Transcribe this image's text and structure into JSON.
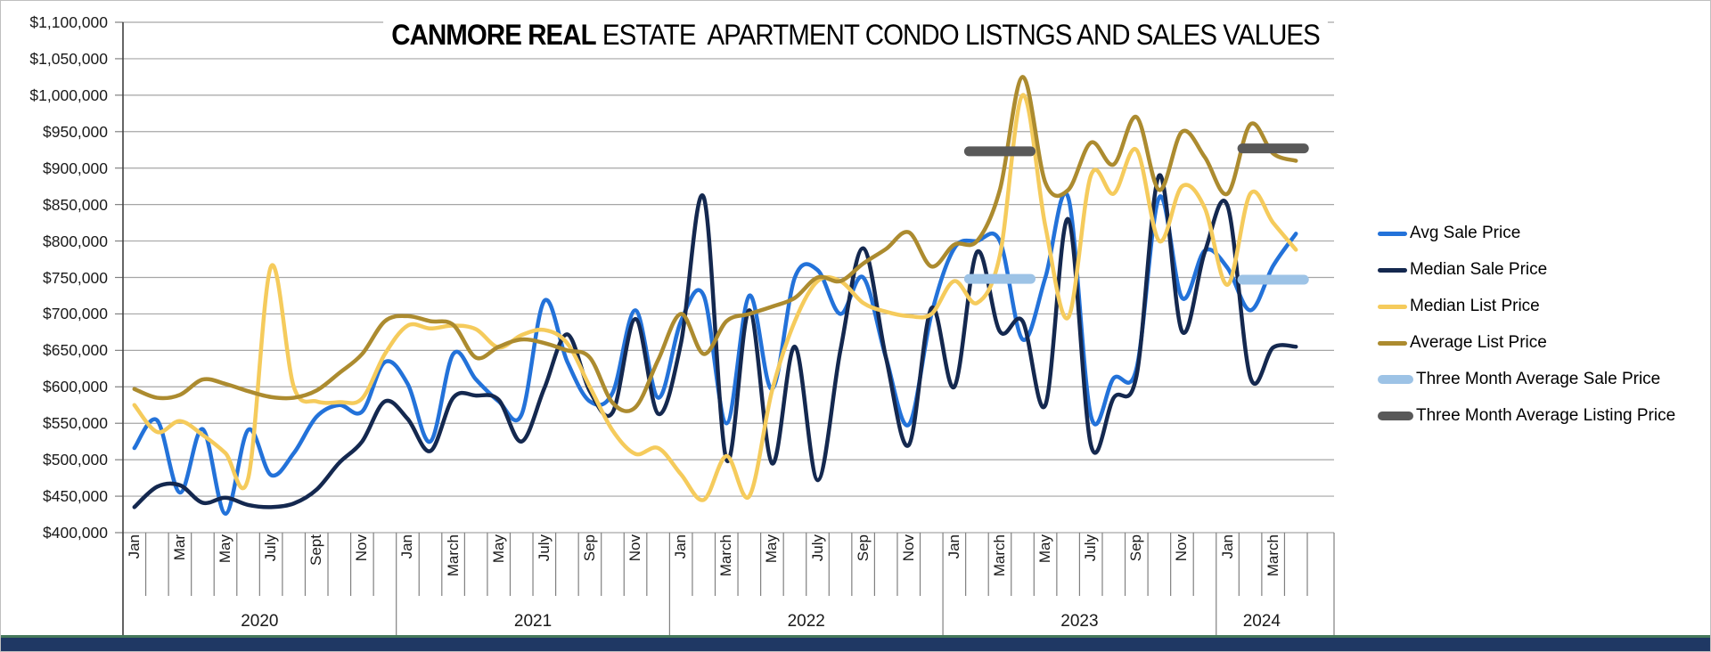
{
  "title": {
    "bold": "CANMORE REAL",
    "rest": " ESTATE  APARTMENT CONDO LISTNGS AND SALES VALUES"
  },
  "colors": {
    "avg_sale": "#2372d9",
    "median_sale": "#14284f",
    "median_list": "#f5cb5c",
    "avg_list": "#ac8b2f",
    "three_month_sale": "#9dc3e6",
    "three_month_listing": "#595959",
    "gridline": "#a6a6a6",
    "axis": "#404040",
    "tick": "#808080",
    "bottom_strip": "#1f3864",
    "bottom_strip_edge": "#46795b"
  },
  "y_axis": {
    "labels": [
      "$1,100,000",
      "$1,050,000",
      "$1,000,000",
      "$950,000",
      "$900,000",
      "$850,000",
      "$800,000",
      "$750,000",
      "$700,000",
      "$650,000",
      "$600,000",
      "$550,000",
      "$500,000",
      "$450,000",
      "$400,000"
    ],
    "min": 400000,
    "max": 1100000,
    "step": 50000
  },
  "x_axis": {
    "years": [
      {
        "label": "2020",
        "months": [
          "Jan",
          "",
          "Mar",
          "",
          "May",
          "",
          "July",
          "",
          "Sept",
          "",
          "Nov",
          ""
        ]
      },
      {
        "label": "2021",
        "months": [
          "Jan",
          "",
          "March",
          "",
          "May",
          "",
          "July",
          "",
          "Sep",
          "",
          "Nov",
          ""
        ]
      },
      {
        "label": "2022",
        "months": [
          "Jan",
          "",
          "March",
          "",
          "May",
          "",
          "July",
          "",
          "Sep",
          "",
          "Nov",
          ""
        ]
      },
      {
        "label": "2023",
        "months": [
          "Jan",
          "",
          "March",
          "",
          "May",
          "",
          "July",
          "",
          "Sep",
          "",
          "Nov",
          ""
        ]
      },
      {
        "label": "2024",
        "months": [
          "Jan",
          "",
          "March",
          ""
        ]
      }
    ]
  },
  "legend": [
    {
      "label": "Avg Sale Price",
      "color": "#2372d9",
      "thick": false
    },
    {
      "label": "Median Sale Price",
      "color": "#14284f",
      "thick": false
    },
    {
      "label": "Median List Price",
      "color": "#f5cb5c",
      "thick": false
    },
    {
      "label": "Average List Price",
      "color": "#ac8b2f",
      "thick": false
    },
    {
      "label": "Three Month Average Sale Price",
      "color": "#9dc3e6",
      "thick": true
    },
    {
      "label": "Three Month Average Listing Price",
      "color": "#595959",
      "thick": true
    }
  ],
  "chart_data": {
    "type": "line",
    "title": "CANMORE REAL ESTATE  APARTMENT CONDO LISTNGS AND SALES VALUES",
    "ylim": [
      400000,
      1100000
    ],
    "grid": true,
    "legend_position": "right",
    "x": [
      "2020-01",
      "2020-02",
      "2020-03",
      "2020-04",
      "2020-05",
      "2020-06",
      "2020-07",
      "2020-08",
      "2020-09",
      "2020-10",
      "2020-11",
      "2020-12",
      "2021-01",
      "2021-02",
      "2021-03",
      "2021-04",
      "2021-05",
      "2021-06",
      "2021-07",
      "2021-08",
      "2021-09",
      "2021-10",
      "2021-11",
      "2021-12",
      "2022-01",
      "2022-02",
      "2022-03",
      "2022-04",
      "2022-05",
      "2022-06",
      "2022-07",
      "2022-08",
      "2022-09",
      "2022-10",
      "2022-11",
      "2022-12",
      "2023-01",
      "2023-02",
      "2023-03",
      "2023-04",
      "2023-05",
      "2023-06",
      "2023-07",
      "2023-08",
      "2023-09",
      "2023-10",
      "2023-11",
      "2023-12",
      "2024-01",
      "2024-02",
      "2024-03",
      "2024-04"
    ],
    "series": [
      {
        "name": "Avg Sale Price",
        "color": "#2372d9",
        "values": [
          516000,
          554000,
          455000,
          542000,
          426000,
          541000,
          479000,
          509000,
          559000,
          575000,
          566000,
          634000,
          604000,
          525000,
          645000,
          610000,
          580000,
          562000,
          718000,
          635000,
          580000,
          592000,
          705000,
          585000,
          690000,
          725000,
          550000,
          725000,
          597000,
          750000,
          760000,
          700000,
          750000,
          640000,
          548000,
          700000,
          790000,
          800000,
          800000,
          665000,
          750000,
          860000,
          560000,
          612000,
          625000,
          860000,
          722000,
          787000,
          763000,
          705000,
          766000,
          810000
        ]
      },
      {
        "name": "Median Sale Price",
        "color": "#14284f",
        "values": [
          435000,
          463000,
          465000,
          441000,
          448000,
          438000,
          435000,
          440000,
          459000,
          496000,
          525000,
          580000,
          556000,
          512000,
          585000,
          588000,
          582000,
          525000,
          598000,
          672000,
          594000,
          565000,
          693000,
          563000,
          660000,
          860000,
          500000,
          705000,
          495000,
          655000,
          472000,
          650000,
          790000,
          640000,
          520000,
          708000,
          600000,
          785000,
          676000,
          690000,
          575000,
          830000,
          520000,
          585000,
          615000,
          890000,
          676000,
          785000,
          848000,
          613000,
          654000,
          655000
        ]
      },
      {
        "name": "Median List Price",
        "color": "#f5cb5c",
        "values": [
          575000,
          538000,
          553000,
          534000,
          509000,
          475000,
          765000,
          600000,
          580000,
          579000,
          584000,
          645000,
          684000,
          680000,
          684000,
          679000,
          654000,
          671000,
          678000,
          660000,
          600000,
          540000,
          508000,
          516000,
          480000,
          445000,
          505000,
          450000,
          595000,
          690000,
          745000,
          745000,
          715000,
          703000,
          697000,
          700000,
          745000,
          715000,
          780000,
          1000000,
          820000,
          695000,
          890000,
          865000,
          925000,
          800000,
          875000,
          845000,
          740000,
          865000,
          825000,
          788000
        ]
      },
      {
        "name": "Average List Price",
        "color": "#ac8b2f",
        "values": [
          597000,
          585000,
          589000,
          610000,
          604000,
          594000,
          586000,
          585000,
          595000,
          619000,
          645000,
          690000,
          697000,
          690000,
          685000,
          640000,
          655000,
          665000,
          660000,
          650000,
          640000,
          578000,
          572000,
          637000,
          700000,
          645000,
          690000,
          700000,
          710000,
          722000,
          750000,
          745000,
          769000,
          789000,
          812000,
          765000,
          795000,
          800000,
          870000,
          1025000,
          880000,
          870000,
          935000,
          905000,
          970000,
          870000,
          950000,
          915000,
          865000,
          960000,
          920000,
          910000
        ]
      }
    ],
    "segments": [
      {
        "name": "Three Month Average Sale Price",
        "color": "#9dc3e6",
        "value": 748000,
        "from": "2023-02",
        "to": "2023-04"
      },
      {
        "name": "Three Month Average Sale Price",
        "color": "#9dc3e6",
        "value": 747000,
        "from": "2024-02",
        "to": "2024-04"
      },
      {
        "name": "Three Month Average Listing Price",
        "color": "#595959",
        "value": 923000,
        "from": "2023-02",
        "to": "2023-04"
      },
      {
        "name": "Three Month Average Listing Price",
        "color": "#595959",
        "value": 927000,
        "from": "2024-02",
        "to": "2024-04"
      }
    ]
  }
}
